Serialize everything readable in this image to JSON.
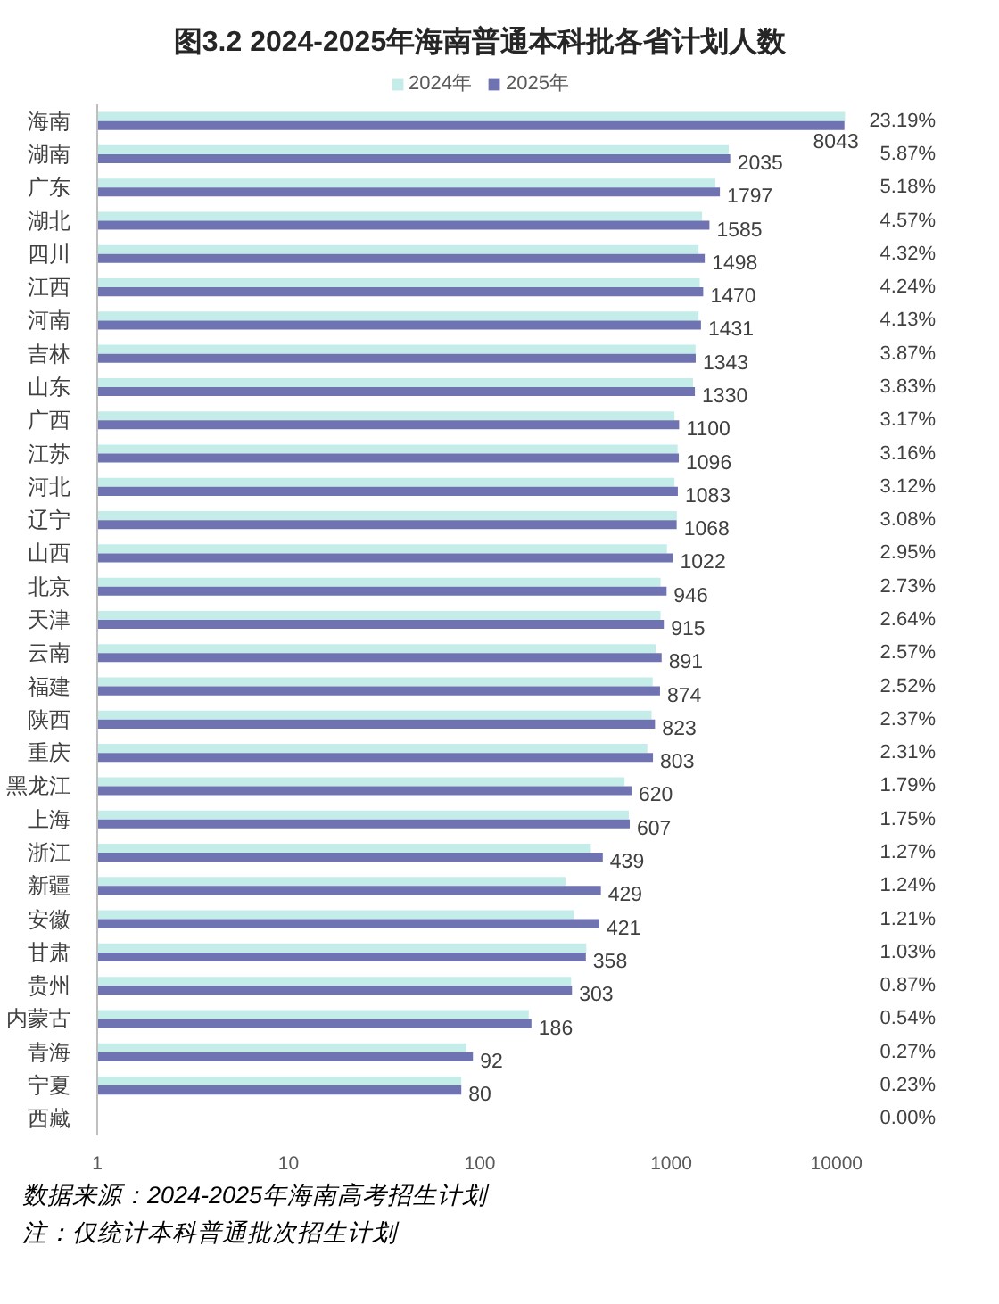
{
  "chart_data": {
    "type": "bar",
    "orientation": "horizontal",
    "title": "图3.2 2024-2025年海南普通本科批各省计划人数",
    "categories": [
      "海南",
      "湖南",
      "广东",
      "湖北",
      "四川",
      "江西",
      "河南",
      "吉林",
      "山东",
      "广西",
      "江苏",
      "河北",
      "辽宁",
      "山西",
      "北京",
      "天津",
      "云南",
      "福建",
      "陕西",
      "重庆",
      "黑龙江",
      "上海",
      "浙江",
      "新疆",
      "安徽",
      "甘肃",
      "贵州",
      "内蒙古",
      "青海",
      "宁夏",
      "西藏"
    ],
    "series": [
      {
        "name": "2024年",
        "color": "#c4ece9",
        "values": [
          8100,
          2000,
          1700,
          1450,
          1390,
          1410,
          1390,
          1340,
          1300,
          1040,
          1080,
          1040,
          1070,
          950,
          880,
          880,
          830,
          800,
          790,
          750,
          570,
          600,
          380,
          280,
          310,
          360,
          300,
          180,
          85,
          80,
          null
        ]
      },
      {
        "name": "2025年",
        "color": "#6f73b1",
        "values": [
          8043,
          2035,
          1797,
          1585,
          1498,
          1470,
          1431,
          1343,
          1330,
          1100,
          1096,
          1083,
          1068,
          1022,
          946,
          915,
          891,
          874,
          823,
          803,
          620,
          607,
          439,
          429,
          421,
          358,
          303,
          186,
          92,
          80,
          null
        ],
        "value_labels": [
          "8043",
          "2035",
          "1797",
          "1585",
          "1498",
          "1470",
          "1431",
          "1343",
          "1330",
          "1100",
          "1096",
          "1083",
          "1068",
          "1022",
          "946",
          "915",
          "891",
          "874",
          "823",
          "803",
          "620",
          "607",
          "439",
          "429",
          "421",
          "358",
          "303",
          "186",
          "92",
          "80",
          null
        ]
      }
    ],
    "xlim": [
      1,
      10000
    ],
    "xticks": [
      1,
      10,
      100,
      1000,
      10000
    ],
    "log": "x",
    "legend": "top",
    "annotations": [
      "23.19%",
      "5.87%",
      "5.18%",
      "4.57%",
      "4.32%",
      "4.24%",
      "4.13%",
      "3.87%",
      "3.83%",
      "3.17%",
      "3.16%",
      "3.12%",
      "3.08%",
      "2.95%",
      "2.73%",
      "2.64%",
      "2.57%",
      "2.52%",
      "2.37%",
      "2.31%",
      "1.79%",
      "1.75%",
      "1.27%",
      "1.24%",
      "1.21%",
      "1.03%",
      "0.87%",
      "0.54%",
      "0.27%",
      "0.23%",
      "0.00%",
      "数据来源：2024-2025年海南高考招生计划",
      "注：仅统计本科普通批次招生计划"
    ]
  }
}
